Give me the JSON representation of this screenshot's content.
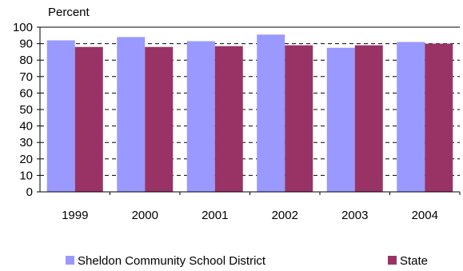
{
  "chart_data": {
    "type": "bar",
    "ylabel": "Percent",
    "categories": [
      "1999",
      "2000",
      "2001",
      "2002",
      "2003",
      "2004"
    ],
    "ylim": [
      0,
      100
    ],
    "yticks": [
      0,
      10,
      20,
      30,
      40,
      50,
      60,
      70,
      80,
      90,
      100
    ],
    "grid": "horizontal dashed",
    "legend_position": "bottom",
    "series": [
      {
        "name": "Sheldon Community School District",
        "color": "#9999ff",
        "values": [
          92,
          94,
          91.5,
          95.5,
          87.5,
          91
        ]
      },
      {
        "name": "State",
        "color": "#993366",
        "values": [
          88,
          88,
          88.5,
          89,
          89,
          90
        ]
      }
    ]
  }
}
